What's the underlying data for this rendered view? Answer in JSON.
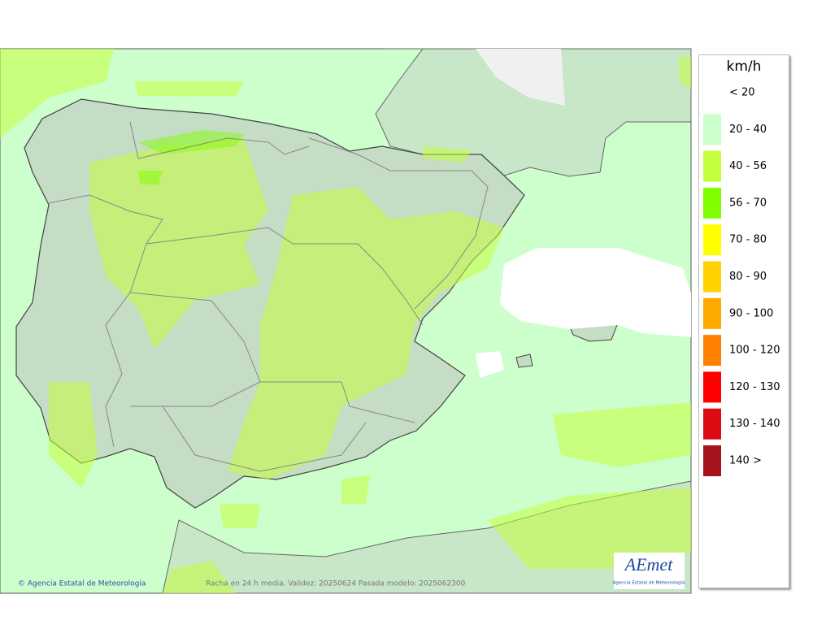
{
  "map": {
    "footer_credit": "© Agencia Estatal de Meteorología",
    "footer_note": "Racha en 24 h media. Validez: 20250624 Pasada modelo: 2025062300",
    "logo_text": "AEmet",
    "logo_subtitle": "Agencia Estatal de Meteorología"
  },
  "legend": {
    "title": "km/h",
    "items": [
      {
        "label": "< 20",
        "color": "#ffffff"
      },
      {
        "label": "20 - 40",
        "color": "#ccffcc"
      },
      {
        "label": "40 - 56",
        "color": "#c4ff3c"
      },
      {
        "label": "56 - 70",
        "color": "#7fff00"
      },
      {
        "label": "70 - 80",
        "color": "#ffff00"
      },
      {
        "label": "80 - 90",
        "color": "#ffd200"
      },
      {
        "label": "90 - 100",
        "color": "#ffaa00"
      },
      {
        "label": "100 - 120",
        "color": "#ff8000"
      },
      {
        "label": "120 - 130",
        "color": "#ff0000"
      },
      {
        "label": "130 - 140",
        "color": "#dd0a14"
      },
      {
        "label": "140 >",
        "color": "#a8141e"
      }
    ]
  }
}
